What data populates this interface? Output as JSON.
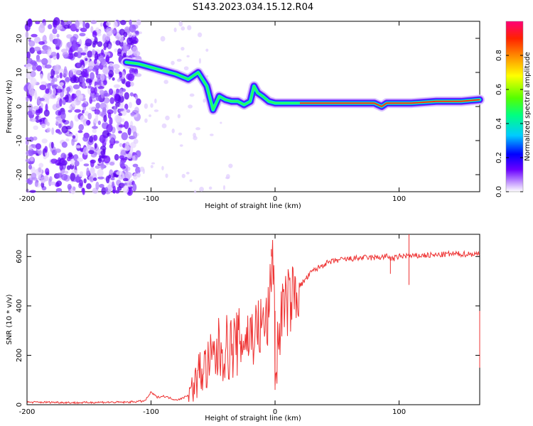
{
  "title": "S143.2023.034.15.12.R04",
  "chart_data": [
    {
      "type": "heatmap",
      "name": "spectrogram",
      "xlabel": "Height of straight line (km)",
      "ylabel": "Frequency (Hz)",
      "xlim": [
        -200,
        165
      ],
      "ylim": [
        -25,
        25
      ],
      "xticks": [
        -200,
        -100,
        0,
        100
      ],
      "xtick_labels": [
        "-200",
        "-100",
        "0",
        "100"
      ],
      "yticks": [
        -20,
        -10,
        0,
        10,
        20
      ],
      "ytick_labels": [
        "-20",
        "-10",
        "0",
        "10",
        "20"
      ],
      "noise_region_x": [
        -200,
        -115
      ],
      "signal_trace": {
        "x": [
          -120,
          -110,
          -100,
          -90,
          -80,
          -70,
          -62,
          -55,
          -50,
          -45,
          -40,
          -35,
          -30,
          -25,
          -20,
          -17,
          -14,
          -10,
          -5,
          0,
          20,
          50,
          80,
          86,
          90,
          110,
          130,
          150,
          165
        ],
        "y": [
          13,
          12.5,
          11.5,
          10.5,
          9.5,
          8,
          10,
          6,
          -1,
          3,
          2,
          1.5,
          1.5,
          0.5,
          1.5,
          6,
          4,
          3,
          1.5,
          1,
          1,
          1,
          1,
          0,
          1,
          1,
          1.5,
          1.5,
          2
        ]
      },
      "colorbar": {
        "label": "Normalized spectral amplitude",
        "range": [
          0,
          1
        ],
        "ticks": [
          0.0,
          0.2,
          0.4,
          0.6,
          0.8
        ],
        "tick_labels": [
          "0.0",
          "0.2",
          "0.4",
          "0.6",
          "0.8"
        ]
      }
    },
    {
      "type": "line",
      "name": "snr",
      "xlabel": "Height of straight line (km)",
      "ylabel": "SNR (10 * v/v)",
      "xlim": [
        -200,
        165
      ],
      "ylim": [
        0,
        690
      ],
      "xticks": [
        -200,
        -100,
        0,
        100
      ],
      "xtick_labels": [
        "-200",
        "-100",
        "0",
        "100"
      ],
      "yticks": [
        0,
        200,
        400,
        600
      ],
      "ytick_labels": [
        "0",
        "200",
        "400",
        "600"
      ],
      "color": "#ee3333",
      "series": [
        {
          "name": "SNR",
          "x": [
            -200,
            -180,
            -160,
            -140,
            -120,
            -105,
            -100,
            -95,
            -90,
            -80,
            -75,
            -70,
            -65,
            -60,
            -55,
            -50,
            -45,
            -40,
            -35,
            -30,
            -25,
            -20,
            -15,
            -10,
            -5,
            -3,
            -1,
            0,
            5,
            10,
            20,
            30,
            40,
            50,
            60,
            70,
            80,
            90,
            95,
            100,
            108,
            110,
            120,
            130,
            140,
            150,
            160,
            165
          ],
          "y": [
            10,
            10,
            8,
            10,
            10,
            15,
            50,
            30,
            35,
            20,
            25,
            40,
            80,
            140,
            150,
            180,
            220,
            230,
            230,
            250,
            270,
            280,
            300,
            320,
            350,
            560,
            620,
            100,
            380,
            410,
            480,
            540,
            570,
            585,
            590,
            595,
            595,
            600,
            590,
            600,
            605,
            600,
            605,
            605,
            610,
            610,
            610,
            610
          ]
        }
      ],
      "spikes": [
        {
          "x": -3,
          "y": 630
        },
        {
          "x": 0,
          "y": 60
        },
        {
          "x": 108,
          "y": 690
        },
        {
          "x": 108,
          "y": 485
        },
        {
          "x": 93,
          "y": 530
        },
        {
          "x": 165,
          "y": 150
        }
      ]
    }
  ]
}
